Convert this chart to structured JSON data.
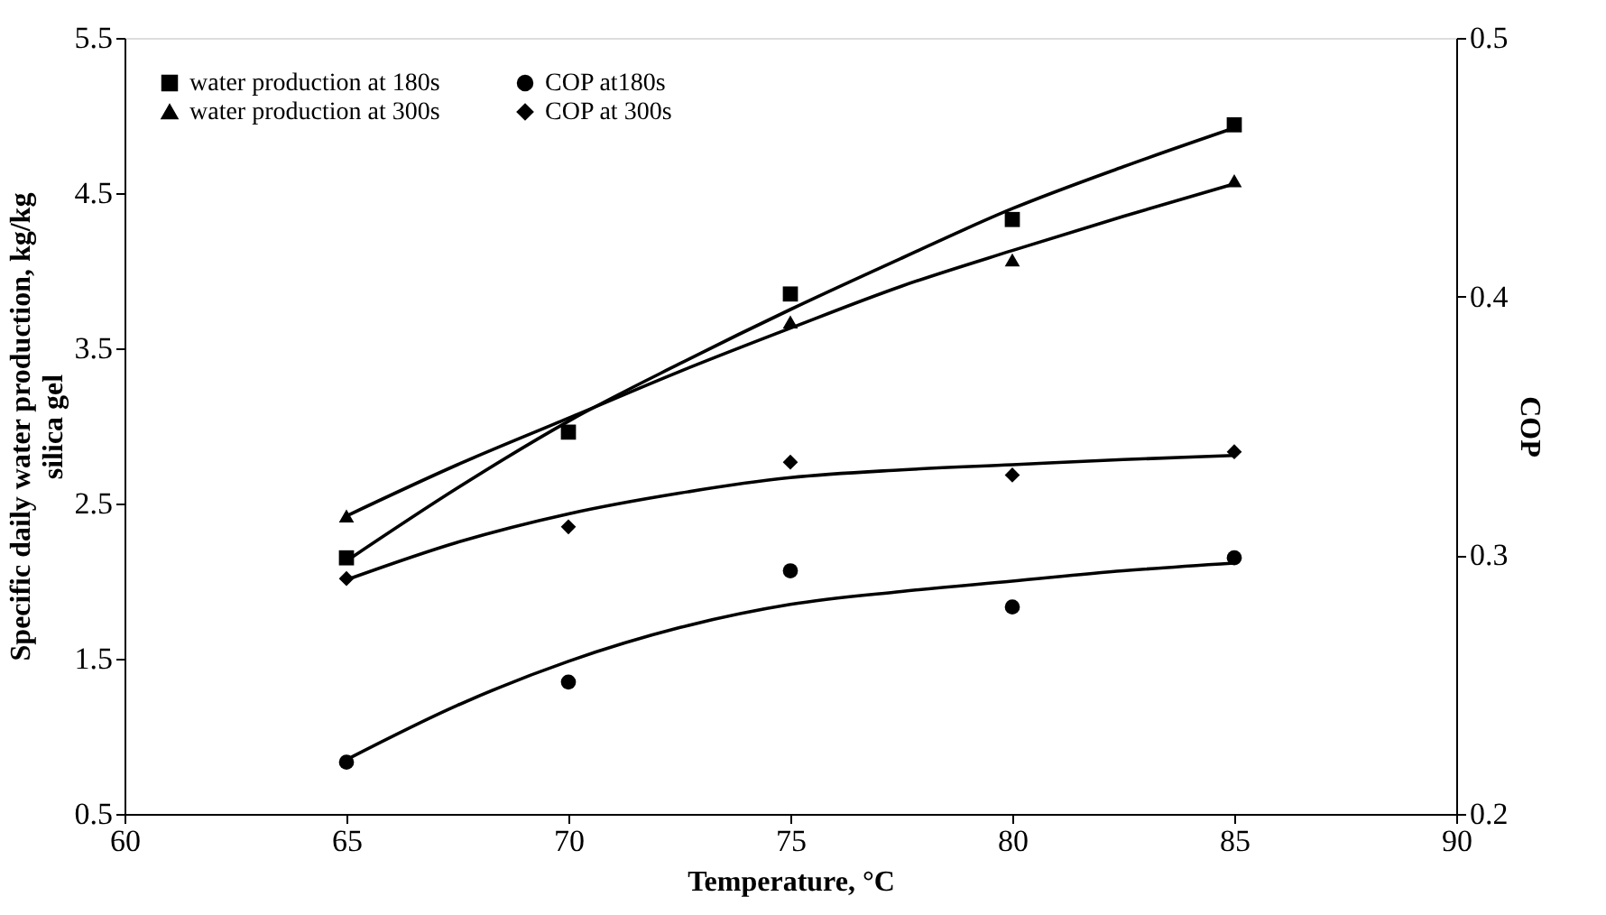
{
  "chart_data": {
    "type": "scatter",
    "xlabel": "Temperature, °C",
    "ylabel": "Specific daily water production, kg/kg silica gel",
    "y2label": "COP",
    "xlim": [
      60,
      90
    ],
    "xticks": [
      60,
      65,
      70,
      75,
      80,
      85,
      90
    ],
    "ylim": [
      0.5,
      5.5
    ],
    "yticks": [
      0.5,
      1.5,
      2.5,
      3.5,
      4.5,
      5.5
    ],
    "y2lim": [
      0.2,
      0.5
    ],
    "y2ticks": [
      0.2,
      0.3,
      0.4,
      0.5
    ],
    "legend": "top left",
    "grid": false,
    "series": [
      {
        "name": "water production at 180s",
        "marker": "square",
        "color": "#000000",
        "x": [
          65,
          70,
          75,
          80,
          85
        ],
        "values": [
          2.15,
          2.96,
          3.85,
          4.33,
          4.94
        ]
      },
      {
        "name": "water production at 300s",
        "marker": "triangle",
        "color": "#000000",
        "x": [
          65,
          70,
          75,
          80,
          85
        ],
        "values": [
          2.42,
          null,
          3.67,
          4.07,
          4.58
        ]
      },
      {
        "name": "COP at180s",
        "marker": "circle",
        "color": "#000000",
        "axis": "y2",
        "x": [
          65,
          70,
          75,
          80,
          85
        ],
        "values": [
          0.22,
          0.251,
          0.294,
          0.28,
          0.299
        ]
      },
      {
        "name": "COP at 300s",
        "marker": "diamond",
        "color": "#000000",
        "axis": "y2",
        "x": [
          65,
          70,
          75,
          80,
          85
        ],
        "values": [
          0.291,
          0.311,
          0.336,
          0.331,
          0.34
        ]
      },
      {
        "type": "line",
        "color": "#000000",
        "x": [
          65,
          67.5,
          70,
          72.5,
          75,
          77.5,
          80,
          82.5,
          85
        ],
        "values": [
          2.13,
          2.6,
          3.03,
          3.4,
          3.75,
          4.08,
          4.4,
          4.67,
          4.92
        ]
      },
      {
        "type": "line",
        "color": "#000000",
        "x": [
          65,
          67.5,
          70,
          72.5,
          75,
          77.5,
          80,
          82.5,
          85
        ],
        "values": [
          2.42,
          2.75,
          3.05,
          3.35,
          3.63,
          3.9,
          4.13,
          4.35,
          4.56
        ]
      },
      {
        "type": "line",
        "color": "#000000",
        "axis": "y2",
        "x": [
          65,
          67.5,
          70,
          72.5,
          75,
          77.5,
          80,
          82.5,
          85
        ],
        "values": [
          0.221,
          0.242,
          0.259,
          0.272,
          0.281,
          0.286,
          0.29,
          0.294,
          0.297
        ]
      },
      {
        "type": "line",
        "color": "#000000",
        "axis": "y2",
        "x": [
          65,
          67.5,
          70,
          72.5,
          75,
          77.5,
          80,
          82.5,
          85
        ],
        "values": [
          0.2905,
          0.305,
          0.316,
          0.324,
          0.33,
          0.333,
          0.335,
          0.337,
          0.3386
        ]
      }
    ]
  }
}
